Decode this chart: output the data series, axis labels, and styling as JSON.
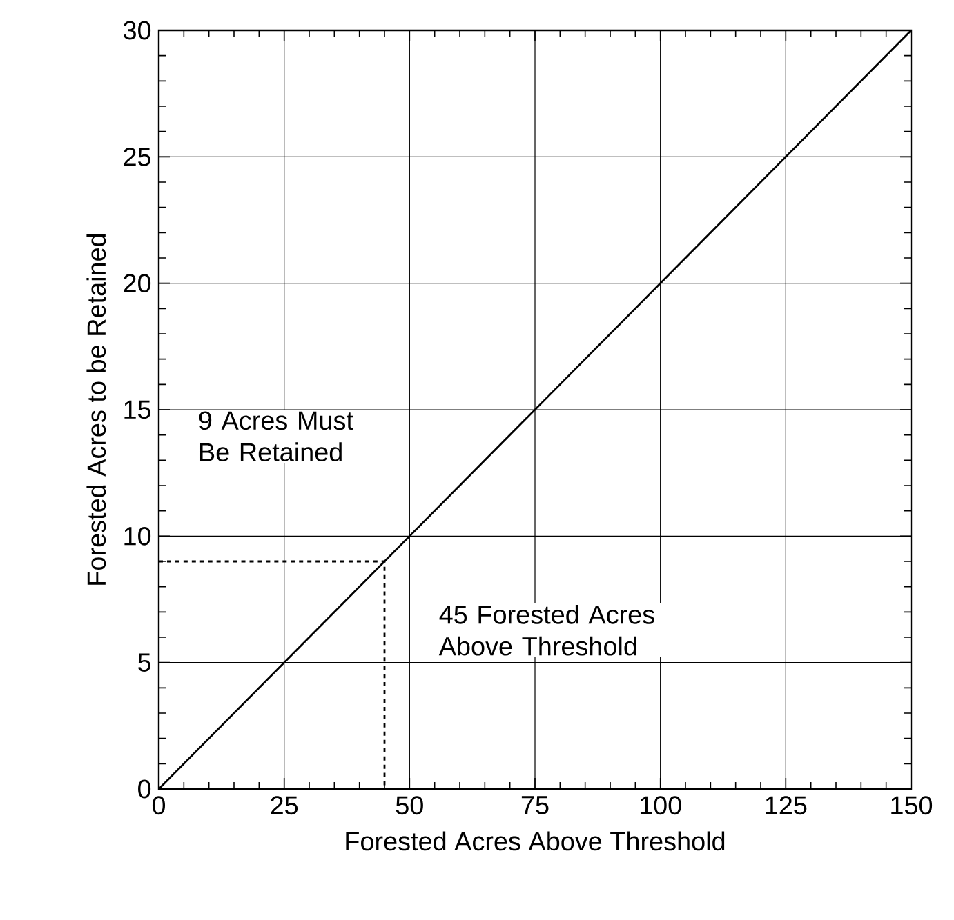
{
  "chart_data": {
    "type": "line",
    "xlabel": "Forested Acres Above Threshold",
    "ylabel": "Forested Acres to be Retained",
    "series": [
      {
        "color": "#000000",
        "x": [
          0,
          150
        ],
        "values": [
          0,
          30
        ],
        "line_style": "solid"
      },
      {
        "color": "#000000",
        "x": [
          0,
          45,
          45
        ],
        "values": [
          9,
          9,
          0
        ],
        "line_style": "dashed"
      }
    ],
    "xlim": [
      0,
      150
    ],
    "ylim": [
      0,
      30
    ],
    "xticks": [
      0,
      25,
      50,
      75,
      100,
      125,
      150
    ],
    "yticks": [
      0,
      5,
      10,
      15,
      20,
      25,
      30
    ],
    "grid": true,
    "marker": "none",
    "annotations": [
      "9 Acres Must Be Retained",
      "45 Forested Acres Above Threshold"
    ]
  }
}
